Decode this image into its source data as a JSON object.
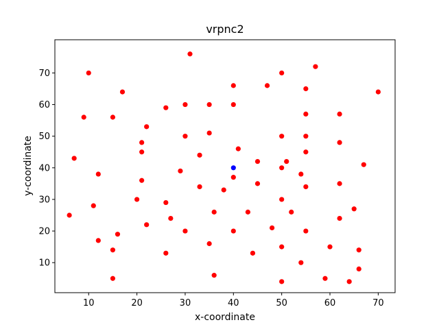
{
  "chart_data": {
    "type": "scatter",
    "title": "vrpnc2",
    "xlabel": "x-coordinate",
    "ylabel": "y-coordinate",
    "xlim": [
      3,
      73.5
    ],
    "ylim": [
      0.5,
      80.5
    ],
    "xticks": [
      10,
      20,
      30,
      40,
      50,
      60,
      70
    ],
    "yticks": [
      10,
      20,
      30,
      40,
      50,
      60,
      70
    ],
    "grid": false,
    "series": [
      {
        "role": "customers",
        "color": "#ff0000",
        "points": [
          [
            31,
            76
          ],
          [
            57,
            72
          ],
          [
            10,
            70
          ],
          [
            50,
            70
          ],
          [
            40,
            66
          ],
          [
            47,
            66
          ],
          [
            55,
            65
          ],
          [
            17,
            64
          ],
          [
            70,
            64
          ],
          [
            26,
            59
          ],
          [
            30,
            60
          ],
          [
            35,
            60
          ],
          [
            40,
            60
          ],
          [
            9,
            56
          ],
          [
            15,
            56
          ],
          [
            55,
            57
          ],
          [
            62,
            57
          ],
          [
            22,
            53
          ],
          [
            30,
            50
          ],
          [
            35,
            51
          ],
          [
            50,
            50
          ],
          [
            55,
            50
          ],
          [
            21,
            48
          ],
          [
            62,
            48
          ],
          [
            41,
            46
          ],
          [
            21,
            45
          ],
          [
            55,
            45
          ],
          [
            33,
            44
          ],
          [
            7,
            43
          ],
          [
            45,
            42
          ],
          [
            51,
            42
          ],
          [
            50,
            40
          ],
          [
            67,
            41
          ],
          [
            12,
            38
          ],
          [
            29,
            39
          ],
          [
            40,
            37
          ],
          [
            54,
            38
          ],
          [
            21,
            36
          ],
          [
            45,
            35
          ],
          [
            62,
            35
          ],
          [
            33,
            34
          ],
          [
            55,
            34
          ],
          [
            38,
            33
          ],
          [
            20,
            30
          ],
          [
            50,
            30
          ],
          [
            26,
            29
          ],
          [
            11,
            28
          ],
          [
            65,
            27
          ],
          [
            6,
            25
          ],
          [
            36,
            26
          ],
          [
            43,
            26
          ],
          [
            52,
            26
          ],
          [
            27,
            24
          ],
          [
            62,
            24
          ],
          [
            22,
            22
          ],
          [
            48,
            21
          ],
          [
            30,
            20
          ],
          [
            40,
            20
          ],
          [
            55,
            20
          ],
          [
            16,
            19
          ],
          [
            12,
            17
          ],
          [
            35,
            16
          ],
          [
            50,
            15
          ],
          [
            60,
            15
          ],
          [
            15,
            14
          ],
          [
            66,
            14
          ],
          [
            26,
            13
          ],
          [
            44,
            13
          ],
          [
            54,
            10
          ],
          [
            66,
            8
          ],
          [
            36,
            6
          ],
          [
            15,
            5
          ],
          [
            59,
            5
          ],
          [
            50,
            4
          ],
          [
            64,
            4
          ]
        ]
      },
      {
        "role": "depot",
        "color": "#0000ff",
        "points": [
          [
            40,
            40
          ]
        ]
      }
    ]
  }
}
